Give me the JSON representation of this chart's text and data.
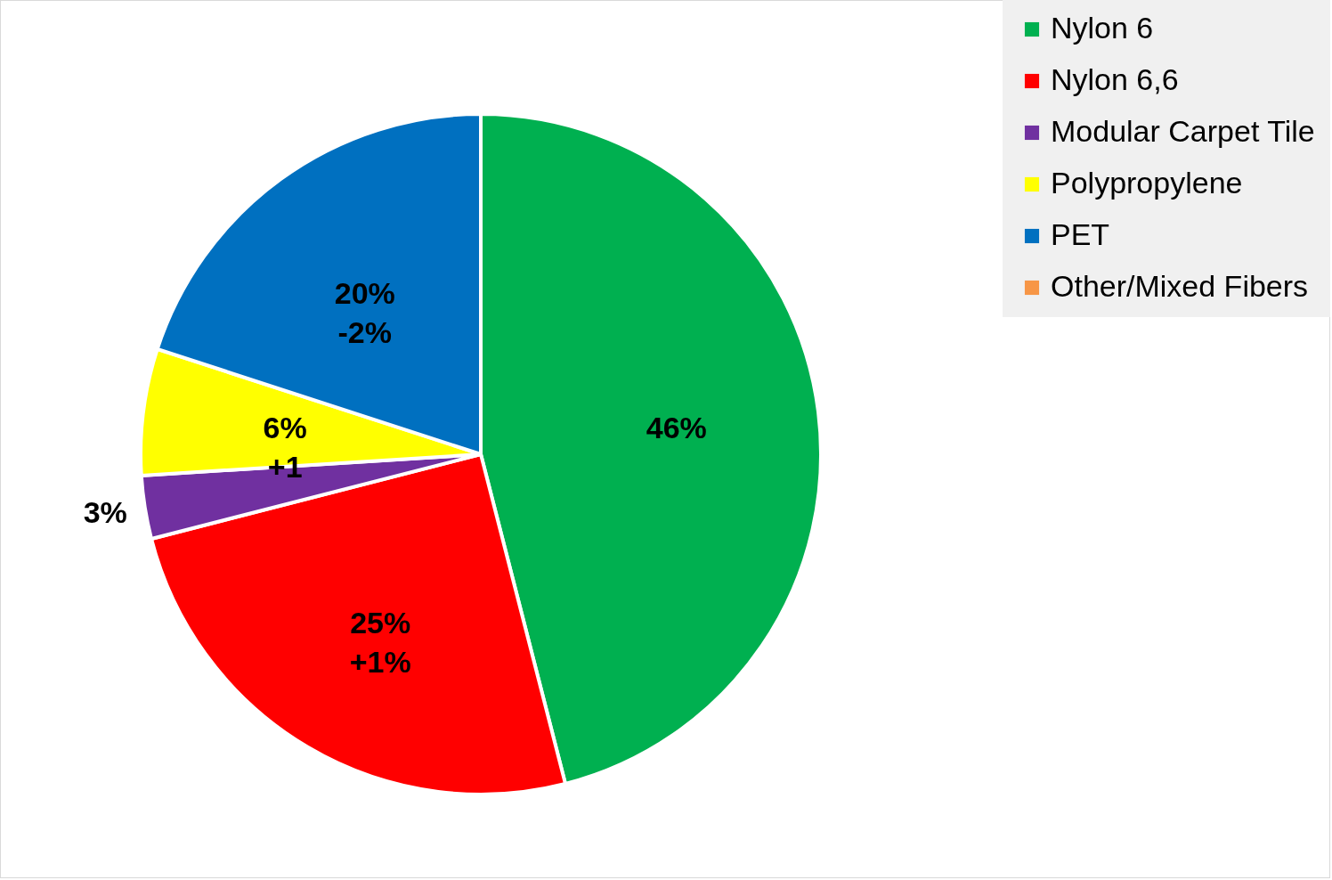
{
  "chart_data": {
    "type": "pie",
    "categories": [
      "Nylon 6",
      "Nylon 6,6",
      "Modular Carpet Tile",
      "Polypropylene",
      "PET",
      "Other/Mixed Fibers"
    ],
    "values": [
      46,
      25,
      3,
      6,
      20,
      0
    ],
    "colors": [
      "#00b050",
      "#ff0000",
      "#7030a0",
      "#ffff00",
      "#0070c0",
      "#f79646"
    ],
    "value_labels": [
      "46%",
      "25%\n+1%",
      "3%",
      "6%\n+1",
      "20%\n-2%",
      null
    ],
    "legend": "top right"
  }
}
